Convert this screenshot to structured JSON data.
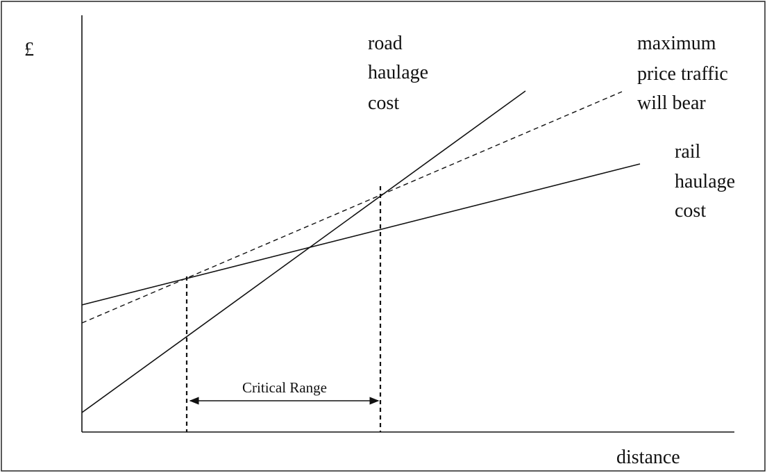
{
  "y_axis_label": "£",
  "x_axis_label": "distance",
  "lines": [
    {
      "label": [
        "road",
        "haulage",
        "cost"
      ]
    },
    {
      "label": [
        "maximum",
        "price traffic",
        "will bear"
      ]
    },
    {
      "label": [
        "rail",
        "haulage",
        "cost"
      ]
    }
  ],
  "range_label": "Critical Range"
}
